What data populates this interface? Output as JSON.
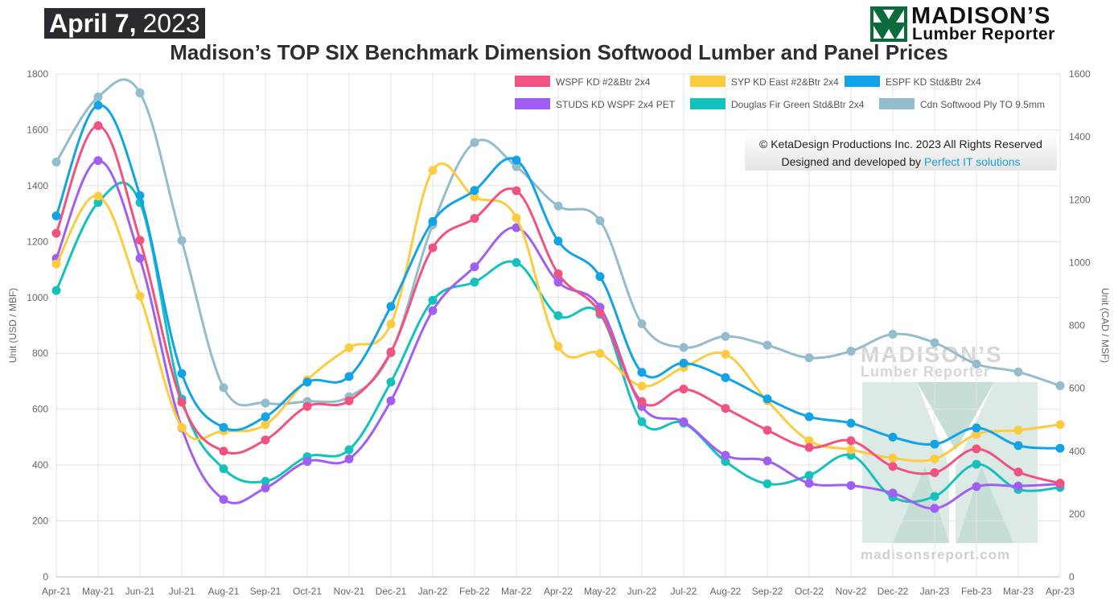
{
  "header": {
    "date_month_day": "April 7,",
    "date_year": "2023",
    "brand_line1": "MADISON’S",
    "brand_line2": "Lumber Reporter"
  },
  "credits": {
    "copyright": "© KetaDesign Productions Inc. 2023 All Rights Reserved",
    "designed_by": "Designed and developed by",
    "designer_link": "Perfect IT solutions"
  },
  "watermark": {
    "line1": "MADISON’S",
    "line2": "Lumber Reporter",
    "url": "madisonsreport.com"
  },
  "chart_data": {
    "type": "line",
    "title": "Madison’s TOP SIX Benchmark Dimension Softwood Lumber and Panel Prices",
    "ylabel": "Unit (USD / MBF)",
    "y2label": "Unit (CAD / MSF)",
    "ylim": [
      0,
      1800
    ],
    "y2lim": [
      0,
      1600
    ],
    "yticks": [
      0,
      200,
      400,
      600,
      800,
      1000,
      1200,
      1400,
      1600,
      1800
    ],
    "y2ticks": [
      0,
      200,
      400,
      600,
      800,
      1000,
      1200,
      1400,
      1600
    ],
    "grid": true,
    "legend_position": "top-right",
    "categories": [
      "Apr-21",
      "May-21",
      "Jun-21",
      "Jul-21",
      "Aug-21",
      "Sep-21",
      "Oct-21",
      "Nov-21",
      "Dec-21",
      "Jan-22",
      "Feb-22",
      "Mar-22",
      "Apr-22",
      "May-22",
      "Jun-22",
      "Jul-22",
      "Aug-22",
      "Sep-22",
      "Oct-22",
      "Nov-22",
      "Dec-22",
      "Jan-23",
      "Feb-23",
      "Mar-23",
      "Apr-23"
    ],
    "series": [
      {
        "name": "WSPF KD #2&Btr 2x4",
        "color": "#f2527f",
        "axis": "left",
        "values": [
          1230,
          1615,
          1205,
          625,
          450,
          490,
          610,
          630,
          805,
          1178,
          1283,
          1382,
          1085,
          945,
          627,
          672,
          603,
          525,
          463,
          487,
          395,
          373,
          458,
          375,
          335
        ]
      },
      {
        "name": "SYP KD East #2&Btr 2x4",
        "color": "#fccb3f",
        "axis": "left",
        "values": [
          1120,
          1363,
          1005,
          535,
          522,
          545,
          705,
          820,
          905,
          1455,
          1360,
          1285,
          825,
          800,
          683,
          750,
          797,
          630,
          487,
          455,
          425,
          422,
          510,
          525,
          545
        ]
      },
      {
        "name": "ESPF KD Std&Btr 2x4",
        "color": "#11a3e6",
        "axis": "left",
        "values": [
          1292,
          1688,
          1365,
          728,
          535,
          573,
          697,
          717,
          968,
          1272,
          1383,
          1492,
          1202,
          1075,
          732,
          765,
          713,
          637,
          573,
          550,
          500,
          475,
          533,
          470,
          460
        ]
      },
      {
        "name": "STUDS KD WSPF 2x4 PET",
        "color": "#a15ef3",
        "axis": "left",
        "values": [
          1140,
          1490,
          1140,
          533,
          277,
          318,
          413,
          422,
          630,
          953,
          1110,
          1250,
          1055,
          965,
          610,
          555,
          435,
          415,
          335,
          327,
          300,
          245,
          323,
          325,
          332
        ]
      },
      {
        "name": "Douglas Fir Green Std&Btr 2x4",
        "color": "#15c1bd",
        "axis": "left",
        "values": [
          1025,
          1340,
          1340,
          637,
          387,
          342,
          430,
          455,
          697,
          990,
          1055,
          1125,
          935,
          940,
          555,
          550,
          413,
          333,
          363,
          435,
          285,
          288,
          403,
          313,
          320
        ]
      },
      {
        "name": "Cdn Softwood Ply TO 9.5mm",
        "color": "#93bccc",
        "axis": "right",
        "values": [
          1320,
          1527,
          1540,
          1070,
          602,
          553,
          558,
          573,
          712,
          1120,
          1382,
          1305,
          1180,
          1133,
          805,
          730,
          765,
          737,
          697,
          718,
          772,
          745,
          677,
          652,
          608
        ]
      }
    ]
  }
}
